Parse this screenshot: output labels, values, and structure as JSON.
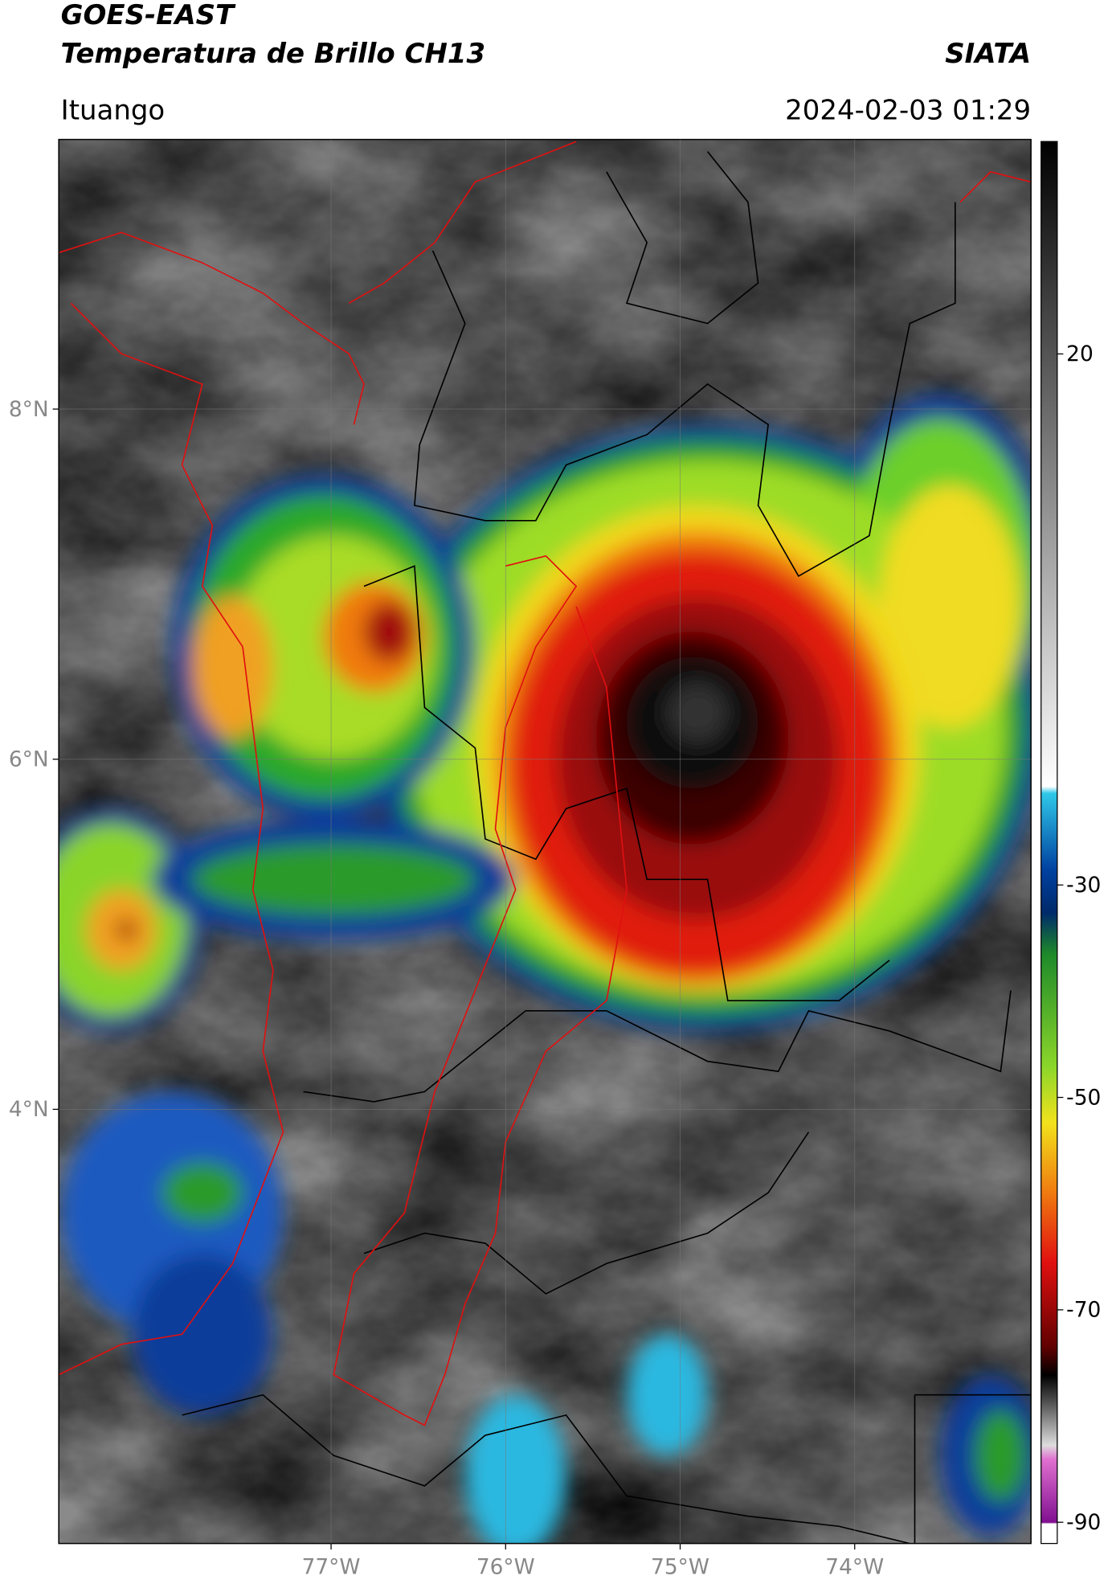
{
  "header": {
    "title": "GOES-EAST",
    "subtitle": "Temperatura de Brillo CH13",
    "source": "SIATA",
    "location": "Ituango",
    "datetime": "2024-02-03 01:29"
  },
  "map": {
    "lat_range": [
      1.52,
      9.54
    ],
    "lon_range": [
      -78.56,
      -72.99
    ],
    "lat_ticks": [
      {
        "value": 8,
        "label": "8°N"
      },
      {
        "value": 6,
        "label": "6°N"
      },
      {
        "value": 4,
        "label": "4°N"
      }
    ],
    "lon_ticks": [
      {
        "value": -77,
        "label": "77°W"
      },
      {
        "value": -76,
        "label": "76°W"
      },
      {
        "value": -75,
        "label": "75°W"
      },
      {
        "value": -74,
        "label": "74°W"
      }
    ]
  },
  "colorbar": {
    "range": [
      -92,
      40
    ],
    "ticks": [
      20,
      -30,
      -50,
      -70,
      -90
    ]
  }
}
